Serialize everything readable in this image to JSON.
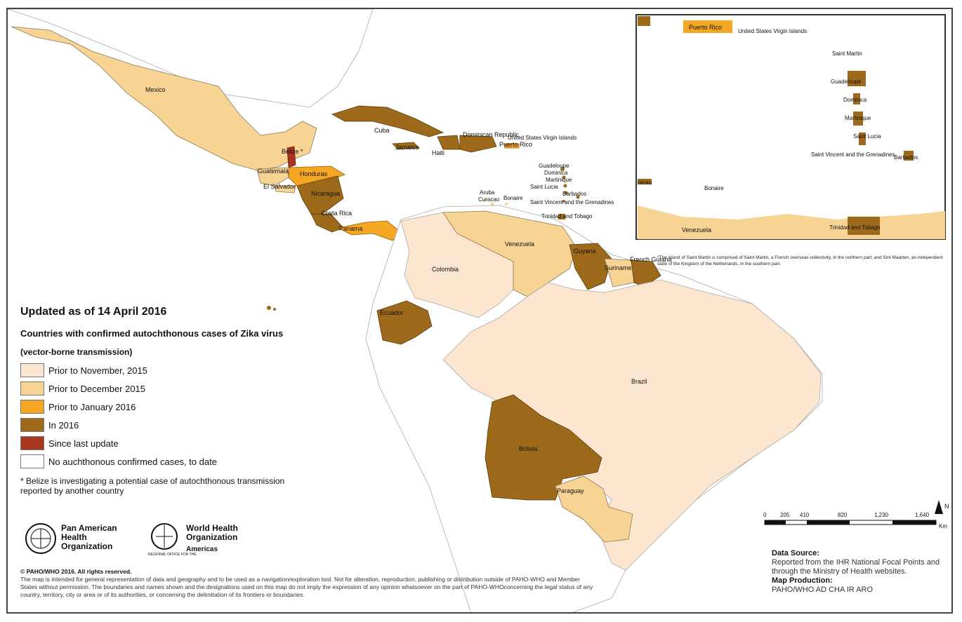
{
  "map": {
    "countries": {
      "mexico": "Mexico",
      "cuba": "Cuba",
      "dominican_republic": "Dominican Republic",
      "haiti": "Haiti",
      "jamaica": "Jamaica",
      "puerto_rico": "Puerto Rico",
      "usvi": "United States Virgin Islands",
      "belize": "Belize *",
      "guatemala": "Guatemala",
      "honduras": "Honduras",
      "el_salvador": "El Salvador",
      "nicaragua": "Nicaragua",
      "costa_rica": "Costa Rica",
      "panama": "Panama",
      "aruba": "Aruba",
      "curacao": "Curacao",
      "bonaire": "Bonaire",
      "guadeloupe": "Guadeloupe",
      "dominica": "Dominica",
      "martinique": "Martinique",
      "saint_lucia": "Saint Lucia",
      "barbados": "Barbados",
      "svg": "Saint Vincent and the Grenadines",
      "trinidad": "Trinidad and Tobago",
      "venezuela": "Venezuela",
      "colombia": "Colombia",
      "guyana": "Guyana",
      "suriname": "Suriname",
      "french_guiana": "French Guiana",
      "ecuador": "Ecuador",
      "brazil": "Brazil",
      "bolivia": "Bolivia",
      "paraguay": "Paraguay"
    },
    "inset": {
      "puerto_rico": "Puerto Rico",
      "usvi": "United States Virgin Islands",
      "saint_martin": "Saint Martin",
      "guadeloupe": "Guadeloupe",
      "dominica": "Dominica",
      "martinique": "Martinique",
      "saint_lucia": "Saint Lucia",
      "svg": "Saint Vincent and the Grenadines",
      "barbados": "Barbados",
      "bonaire": "Bonaire",
      "curacao_partial": "racao",
      "venezuela": "Venezuela",
      "trinidad": "Trinidad and Tobago",
      "note": "*The island of Saint Martin is comprised of Saint Martin, a French overseas collectivity, in the northern part; and Sint Maarten, an independent state of the Kingdom of the Netherlands, in the southern part."
    }
  },
  "legend": {
    "updated": "Updated as of 14 April 2016",
    "title": "Countries with confirmed autochthonous cases of Zika virus",
    "subtitle": "(vector-borne transmission)",
    "items": [
      {
        "label": "Prior to November, 2015",
        "color": "#fce6cf"
      },
      {
        "label": "Prior to December 2015",
        "color": "#f7d394"
      },
      {
        "label": "Prior to January 2016",
        "color": "#f5a623"
      },
      {
        "label": "In 2016",
        "color": "#9c6a1a"
      },
      {
        "label": "Since last update",
        "color": "#a8361f"
      },
      {
        "label": "No auchthonous confirmed cases, to date",
        "color": "#ffffff"
      }
    ],
    "belize_note": "* Belize is investigating a potential case of autochthonous transmission reported by another country"
  },
  "logos": {
    "paho": "Pan American Health Organization",
    "who": "World Health Organization",
    "who_region": "Americas",
    "who_small": "REGIONAL OFFICE FOR THE"
  },
  "copyright": {
    "title": "© PAHO/WHO 2016. All rights reserved.",
    "body": "The map is intended for general representation of data and geography and to be used as a navigation/exploration tool. Not for alteration, reproduction, publishing or distribution outside of PAHO-WHO and Member States without permission. The boundaries and names shown and the designations used on this map do not imply the expression of any opinion whatsoever on the part of PAHO-WHOconcerning the legal status of any country, territory, city or area or of its authorities, or concerning the delimitation of its frontiers or boundaries."
  },
  "scale": {
    "ticks": [
      "0",
      "205",
      "410",
      "820",
      "1,230",
      "1,640"
    ],
    "unit": "Km",
    "north": "N"
  },
  "source": {
    "data_head": "Data Source:",
    "data_body": "Reported from the IHR National Focal Points and through the Ministry of Health websites.",
    "prod_head": "Map Production:",
    "prod_body": "PAHO/WHO AD CHA IR ARO"
  },
  "colors": {
    "nov2015": "#fce6cf",
    "dec2015": "#f7d394",
    "jan2016": "#f5a623",
    "in2016": "#9c6a1a",
    "since_last": "#a8361f",
    "none": "#ffffff",
    "border": "#999999"
  }
}
